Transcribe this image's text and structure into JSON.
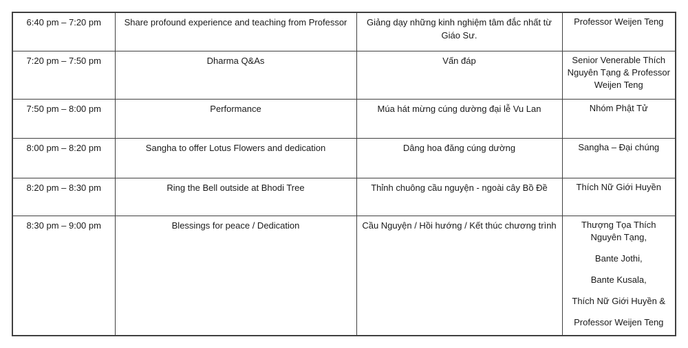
{
  "document": {
    "kind": "event-schedule-table",
    "border_color": "#404040",
    "text_color": "#1a1a1a"
  },
  "schedule_table": {
    "columns": [
      "time",
      "activity_en",
      "activity_vi",
      "people"
    ],
    "rows": [
      {
        "time": "6:40 pm – 7:20 pm",
        "activity_en": "Share profound experience and teaching from Professor",
        "activity_vi": "Giảng dạy những kinh nghiệm tâm đắc nhất từ Giáo Sư.",
        "people": [
          "Professor Weijen Teng"
        ]
      },
      {
        "time": "7:20 pm – 7:50 pm",
        "activity_en": "Dharma Q&As",
        "activity_vi": "Vấn đáp",
        "people": [
          "Senior Venerable Thích Nguyên Tạng & Professor Weijen Teng"
        ]
      },
      {
        "time": "7:50 pm – 8:00 pm",
        "activity_en": "Performance",
        "activity_vi": "Múa hát mừng cúng dường đại lễ Vu Lan",
        "people": [
          "Nhóm Phật Tử"
        ]
      },
      {
        "time": "8:00 pm – 8:20 pm",
        "activity_en": "Sangha to offer Lotus Flowers and dedication",
        "activity_vi": "Dâng hoa đăng cúng dường",
        "people": [
          "Sangha – Đại chúng"
        ]
      },
      {
        "time": "8:20 pm – 8:30 pm",
        "activity_en": "Ring the Bell outside at Bhodi Tree",
        "activity_vi": "Thỉnh chuông cầu nguyện - ngoài cây Bồ Đề",
        "people": [
          "Thích Nữ Giới Huyền"
        ]
      },
      {
        "time": "8:30 pm – 9:00 pm",
        "activity_en": "Blessings for peace / Dedication",
        "activity_vi": "Cầu Nguyện / Hồi hướng / Kết thúc chương trình",
        "people": [
          "Thượng Tọa Thích Nguyên Tạng,",
          "Bante Jothi,",
          "Bante Kusala,",
          "Thích Nữ Giới Huyền &",
          "Professor Weijen Teng"
        ]
      }
    ]
  }
}
